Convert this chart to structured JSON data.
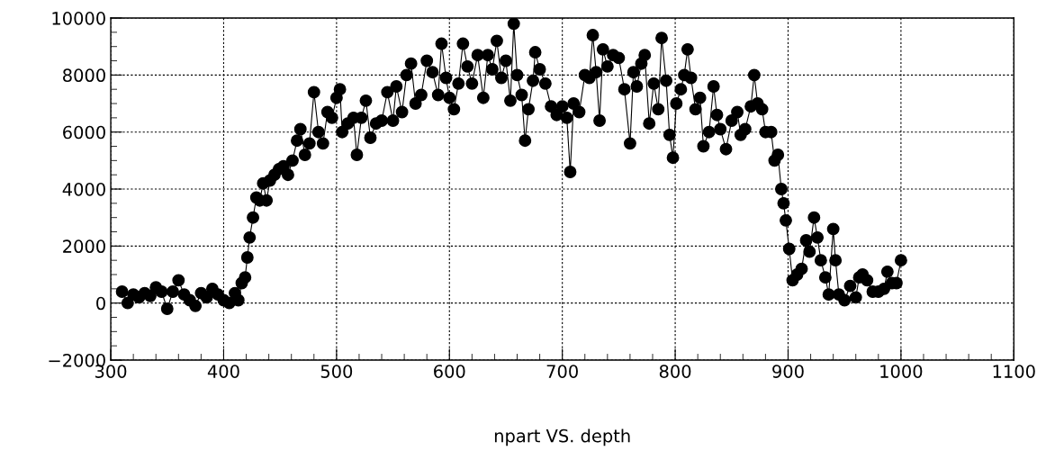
{
  "chart_data": {
    "type": "line",
    "xlabel": "npart VS. depth",
    "x": [
      310,
      315,
      320,
      325,
      330,
      335,
      340,
      345,
      350,
      355,
      360,
      365,
      370,
      375,
      380,
      385,
      390,
      395,
      400,
      405,
      410,
      413,
      416,
      419,
      421,
      423,
      426,
      429,
      432,
      435,
      438,
      441,
      445,
      449,
      453,
      457,
      461,
      465,
      468,
      472,
      476,
      480,
      484,
      488,
      492,
      496,
      500,
      503,
      505,
      510,
      515,
      518,
      522,
      526,
      530,
      535,
      540,
      545,
      550,
      553,
      558,
      562,
      566,
      570,
      575,
      580,
      585,
      590,
      593,
      597,
      600,
      604,
      608,
      612,
      616,
      620,
      625,
      630,
      634,
      638,
      642,
      646,
      650,
      654,
      657,
      660,
      664,
      667,
      670,
      674,
      676,
      680,
      685,
      690,
      695,
      700,
      704,
      707,
      710,
      715,
      720,
      724,
      727,
      730,
      733,
      736,
      740,
      745,
      750,
      755,
      760,
      763,
      766,
      770,
      773,
      777,
      781,
      785,
      788,
      792,
      795,
      798,
      801,
      805,
      808,
      811,
      814,
      818,
      822,
      825,
      830,
      834,
      837,
      840,
      845,
      850,
      855,
      858,
      862,
      867,
      870,
      873,
      877,
      880,
      885,
      888,
      891,
      894,
      896,
      898,
      901,
      904,
      908,
      912,
      916,
      919,
      923,
      926,
      929,
      933,
      936,
      940,
      942,
      945,
      950,
      955,
      960,
      963,
      966,
      970,
      975,
      980,
      985,
      988,
      992,
      996,
      1000
    ],
    "series": [
      {
        "color": "#000000",
        "values": [
          400,
          0,
          300,
          200,
          350,
          250,
          550,
          400,
          -200,
          400,
          800,
          300,
          100,
          -100,
          350,
          200,
          500,
          300,
          100,
          0,
          350,
          100,
          700,
          900,
          1600,
          2300,
          3000,
          3700,
          3600,
          4200,
          3600,
          4300,
          4500,
          4700,
          4800,
          4500,
          5000,
          5700,
          6100,
          5200,
          5600,
          7400,
          6000,
          5600,
          6700,
          6500,
          7200,
          7500,
          6000,
          6300,
          6500,
          5200,
          6500,
          7100,
          5800,
          6300,
          6400,
          7400,
          6400,
          7600,
          6700,
          8000,
          8400,
          7000,
          7300,
          8500,
          8100,
          7300,
          9100,
          7900,
          7200,
          6800,
          7700,
          9100,
          8300,
          7700,
          8700,
          7200,
          8700,
          8200,
          9200,
          7900,
          8500,
          7100,
          9800,
          8000,
          7300,
          5700,
          6800,
          7800,
          8800,
          8200,
          7700,
          6900,
          6600,
          6900,
          6500,
          4600,
          7000,
          6700,
          8000,
          7900,
          9400,
          8100,
          6400,
          8900,
          8300,
          8700,
          8600,
          7500,
          5600,
          8100,
          7600,
          8400,
          8700,
          6300,
          7700,
          6800,
          9300,
          7800,
          5900,
          5100,
          7000,
          7500,
          8000,
          8900,
          7900,
          6800,
          7200,
          5500,
          6000,
          7600,
          6600,
          6100,
          5400,
          6400,
          6700,
          5900,
          6100,
          6900,
          8000,
          7000,
          6800,
          6000,
          6000,
          5000,
          5200,
          4000,
          3500,
          2900,
          1900,
          800,
          1000,
          1200,
          2200,
          1800,
          3000,
          2300,
          1500,
          900,
          300,
          2600,
          1500,
          300,
          100,
          600,
          200,
          900,
          1000,
          800,
          400,
          400,
          500,
          1100,
          700,
          700,
          1500
        ]
      }
    ],
    "xlim": [
      300,
      1100
    ],
    "xticks": [
      300,
      400,
      500,
      600,
      700,
      800,
      900,
      1000,
      1100
    ],
    "ylim": [
      -2000,
      10000
    ],
    "yticks": [
      {
        "value": -2000,
        "label": "−2000"
      },
      0,
      2000,
      4000,
      6000,
      8000,
      10000
    ],
    "grid": true,
    "marker": "circle",
    "line_style": "solid"
  }
}
